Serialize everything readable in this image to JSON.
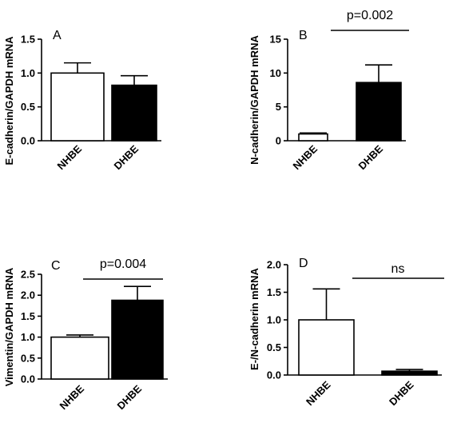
{
  "chart_data": [
    {
      "type": "bar",
      "panel_label": "A",
      "ylabel": "E-cadherin/GAPDH mRNA",
      "categories": [
        "NHBE",
        "DHBE"
      ],
      "values": [
        1.0,
        0.82
      ],
      "errors": [
        0.15,
        0.14
      ],
      "fills": [
        "#ffffff",
        "#000000"
      ],
      "ylim": [
        0,
        1.5
      ],
      "yticks": [
        "0.0",
        "0.5",
        "1.0",
        "1.5"
      ],
      "annotation": ""
    },
    {
      "type": "bar",
      "panel_label": "B",
      "ylabel": "N-cadherin/GAPDH mRNA",
      "categories": [
        "NHBE",
        "DHBE"
      ],
      "values": [
        1.0,
        8.6
      ],
      "errors": [
        0.15,
        2.6
      ],
      "fills": [
        "#ffffff",
        "#000000"
      ],
      "ylim": [
        0,
        15
      ],
      "yticks": [
        "0",
        "5",
        "10",
        "15"
      ],
      "annotation": "p=0.002"
    },
    {
      "type": "bar",
      "panel_label": "C",
      "ylabel": "Vimentin/GAPDH mRNA",
      "categories": [
        "NHBE",
        "DHBE"
      ],
      "values": [
        1.0,
        1.88
      ],
      "errors": [
        0.05,
        0.33
      ],
      "fills": [
        "#ffffff",
        "#000000"
      ],
      "ylim": [
        0,
        2.5
      ],
      "yticks": [
        "0.0",
        "0.5",
        "1.0",
        "1.5",
        "2.0",
        "2.5"
      ],
      "annotation": "p=0.004"
    },
    {
      "type": "bar",
      "panel_label": "D",
      "ylabel": "E-/N-cadherin mRNA",
      "categories": [
        "NHBE",
        "DHBE"
      ],
      "values": [
        1.0,
        0.07
      ],
      "errors": [
        0.56,
        0.03
      ],
      "fills": [
        "#ffffff",
        "#000000"
      ],
      "ylim": [
        0,
        2.0
      ],
      "yticks": [
        "0.0",
        "0.5",
        "1.0",
        "1.5",
        "2.0"
      ],
      "annotation": "ns"
    }
  ]
}
